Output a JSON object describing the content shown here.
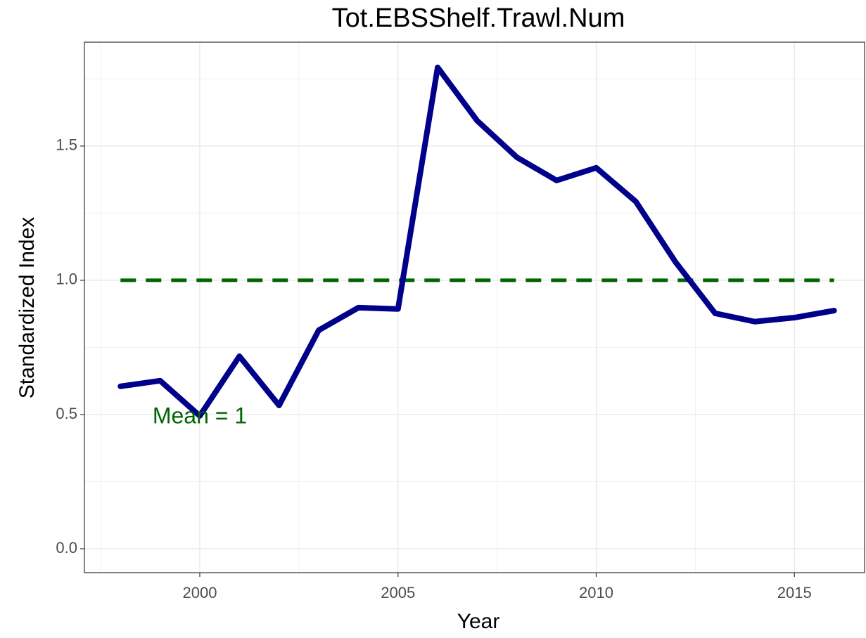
{
  "chart_data": {
    "type": "line",
    "title": "Tot.EBSShelf.Trawl.Num",
    "x_label": "Year",
    "y_label": "Standardized Index",
    "x": [
      1998,
      1999,
      2000,
      2001,
      2002,
      2003,
      2004,
      2005,
      2006,
      2007,
      2008,
      2009,
      2010,
      2011,
      2012,
      2013,
      2014,
      2015,
      2016
    ],
    "series": [
      {
        "name": "Tot.EBSShelf.Trawl.Num",
        "color": "#00008b",
        "values": [
          0.605,
          0.626,
          0.495,
          0.717,
          0.534,
          0.814,
          0.898,
          0.893,
          1.793,
          1.594,
          1.458,
          1.372,
          1.419,
          1.293,
          1.068,
          0.877,
          0.846,
          0.861,
          0.887
        ]
      }
    ],
    "reference_line": {
      "value": 1,
      "color": "#006400"
    },
    "annotations": [
      {
        "text": "Mean = 1",
        "x": 2000,
        "y": 0.5,
        "color": "#006400"
      }
    ],
    "xlim": [
      1997.09,
      2016.77
    ],
    "xticks": [
      2000,
      2005,
      2010,
      2015
    ],
    "ylim": [
      -0.089,
      1.887
    ],
    "yticks": [
      {
        "value": 0,
        "label": "0.0"
      },
      0.5,
      {
        "value": 1,
        "label": "1.0"
      },
      1.5
    ],
    "grid": true,
    "minor_grid": true
  }
}
